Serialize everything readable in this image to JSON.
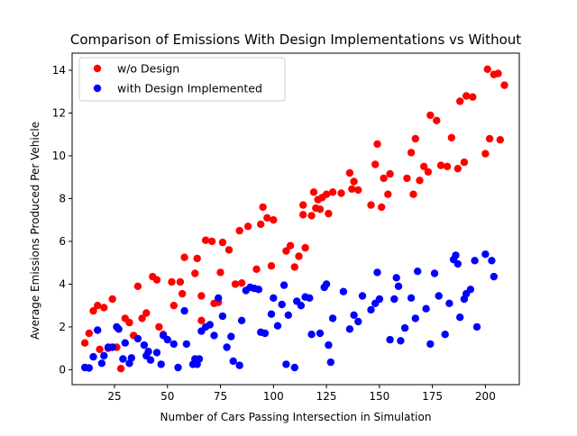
{
  "chart_data": {
    "type": "scatter",
    "title": "Comparison of Emissions With Design Implementations vs Without",
    "xlabel": "Number of Cars Passing Intersection in Simulation",
    "ylabel": "Average Emissions Produced Per Vehicle",
    "xlim": [
      5,
      216
    ],
    "ylim": [
      -0.7,
      14.8
    ],
    "xticks": [
      25,
      50,
      75,
      100,
      125,
      150,
      175,
      200
    ],
    "yticks": [
      0,
      2,
      4,
      6,
      8,
      10,
      12,
      14
    ],
    "grid": false,
    "legend_position": "upper left",
    "series": [
      {
        "name": "w/o Design",
        "color": "#ff0000",
        "points": [
          [
            11,
            1.25
          ],
          [
            13,
            1.7
          ],
          [
            15,
            2.75
          ],
          [
            17,
            3.0
          ],
          [
            18,
            0.95
          ],
          [
            20,
            2.9
          ],
          [
            22,
            1.0
          ],
          [
            24,
            3.3
          ],
          [
            26,
            1.05
          ],
          [
            28,
            0.05
          ],
          [
            30,
            2.4
          ],
          [
            32,
            2.2
          ],
          [
            34,
            1.6
          ],
          [
            36,
            3.9
          ],
          [
            38,
            2.4
          ],
          [
            40,
            2.65
          ],
          [
            43,
            4.35
          ],
          [
            45,
            4.2
          ],
          [
            46,
            2.0
          ],
          [
            48,
            1.65
          ],
          [
            52,
            4.1
          ],
          [
            53,
            3.0
          ],
          [
            56,
            4.1
          ],
          [
            57,
            3.55
          ],
          [
            58,
            5.25
          ],
          [
            63,
            4.5
          ],
          [
            64,
            5.2
          ],
          [
            66,
            3.45
          ],
          [
            66,
            2.3
          ],
          [
            68,
            6.05
          ],
          [
            71,
            6.0
          ],
          [
            72,
            3.1
          ],
          [
            74,
            3.15
          ],
          [
            75,
            4.55
          ],
          [
            76,
            5.95
          ],
          [
            79,
            5.6
          ],
          [
            82,
            4.0
          ],
          [
            84,
            6.5
          ],
          [
            85,
            4.05
          ],
          [
            88,
            6.7
          ],
          [
            92,
            4.7
          ],
          [
            94,
            6.8
          ],
          [
            95,
            7.6
          ],
          [
            97,
            7.1
          ],
          [
            99,
            4.85
          ],
          [
            100,
            7.0
          ],
          [
            106,
            5.55
          ],
          [
            108,
            5.8
          ],
          [
            110,
            4.8
          ],
          [
            112,
            5.3
          ],
          [
            114,
            7.7
          ],
          [
            114,
            7.25
          ],
          [
            115,
            5.7
          ],
          [
            118,
            7.2
          ],
          [
            119,
            8.3
          ],
          [
            120,
            7.55
          ],
          [
            121,
            7.95
          ],
          [
            122,
            7.5
          ],
          [
            123,
            8.05
          ],
          [
            125,
            8.2
          ],
          [
            126,
            7.3
          ],
          [
            128,
            8.3
          ],
          [
            132,
            8.25
          ],
          [
            136,
            9.2
          ],
          [
            137,
            8.45
          ],
          [
            138,
            8.8
          ],
          [
            140,
            8.4
          ],
          [
            146,
            7.7
          ],
          [
            148,
            9.6
          ],
          [
            149,
            10.55
          ],
          [
            151,
            7.6
          ],
          [
            152,
            8.95
          ],
          [
            154,
            8.2
          ],
          [
            155,
            9.15
          ],
          [
            163,
            8.95
          ],
          [
            165,
            10.15
          ],
          [
            166,
            8.2
          ],
          [
            167,
            10.8
          ],
          [
            169,
            8.85
          ],
          [
            171,
            9.5
          ],
          [
            173,
            9.25
          ],
          [
            174,
            11.9
          ],
          [
            177,
            11.65
          ],
          [
            179,
            9.55
          ],
          [
            182,
            9.5
          ],
          [
            184,
            10.85
          ],
          [
            187,
            9.4
          ],
          [
            188,
            12.55
          ],
          [
            190,
            9.7
          ],
          [
            191,
            12.8
          ],
          [
            194,
            12.75
          ],
          [
            200,
            10.1
          ],
          [
            201,
            14.05
          ],
          [
            202,
            10.8
          ],
          [
            204,
            13.8
          ],
          [
            206,
            13.85
          ],
          [
            207,
            10.75
          ],
          [
            209,
            13.3
          ]
        ]
      },
      {
        "name": "with Design Implemented",
        "color": "#0000ff",
        "points": [
          [
            11,
            0.1
          ],
          [
            13,
            0.08
          ],
          [
            15,
            0.6
          ],
          [
            17,
            1.85
          ],
          [
            19,
            0.3
          ],
          [
            20,
            0.65
          ],
          [
            22,
            1.05
          ],
          [
            24,
            1.05
          ],
          [
            26,
            2.0
          ],
          [
            27,
            1.9
          ],
          [
            29,
            0.5
          ],
          [
            30,
            1.25
          ],
          [
            32,
            0.3
          ],
          [
            33,
            0.55
          ],
          [
            36,
            1.45
          ],
          [
            39,
            1.15
          ],
          [
            40,
            0.65
          ],
          [
            41,
            0.85
          ],
          [
            42,
            0.45
          ],
          [
            45,
            0.8
          ],
          [
            47,
            0.25
          ],
          [
            48,
            1.6
          ],
          [
            50,
            1.4
          ],
          [
            53,
            1.2
          ],
          [
            55,
            0.1
          ],
          [
            58,
            2.75
          ],
          [
            59,
            1.2
          ],
          [
            62,
            0.25
          ],
          [
            63,
            0.5
          ],
          [
            64,
            0.25
          ],
          [
            65,
            0.5
          ],
          [
            66,
            1.8
          ],
          [
            68,
            2.0
          ],
          [
            70,
            2.1
          ],
          [
            72,
            1.6
          ],
          [
            74,
            3.35
          ],
          [
            76,
            2.5
          ],
          [
            78,
            1.05
          ],
          [
            80,
            1.55
          ],
          [
            81,
            0.4
          ],
          [
            84,
            0.2
          ],
          [
            85,
            2.3
          ],
          [
            87,
            3.7
          ],
          [
            89,
            3.85
          ],
          [
            91,
            3.8
          ],
          [
            93,
            3.75
          ],
          [
            94,
            1.75
          ],
          [
            96,
            1.7
          ],
          [
            99,
            2.6
          ],
          [
            100,
            3.35
          ],
          [
            102,
            2.05
          ],
          [
            104,
            3.05
          ],
          [
            105,
            3.95
          ],
          [
            106,
            0.25
          ],
          [
            107,
            2.55
          ],
          [
            110,
            0.1
          ],
          [
            111,
            3.2
          ],
          [
            113,
            3.0
          ],
          [
            115,
            3.4
          ],
          [
            117,
            3.35
          ],
          [
            118,
            1.65
          ],
          [
            122,
            1.7
          ],
          [
            124,
            3.85
          ],
          [
            125,
            4.0
          ],
          [
            126,
            1.15
          ],
          [
            127,
            0.35
          ],
          [
            128,
            2.4
          ],
          [
            133,
            3.65
          ],
          [
            136,
            1.9
          ],
          [
            138,
            2.55
          ],
          [
            140,
            2.25
          ],
          [
            142,
            3.45
          ],
          [
            146,
            2.8
          ],
          [
            148,
            3.1
          ],
          [
            149,
            4.55
          ],
          [
            150,
            3.3
          ],
          [
            155,
            1.4
          ],
          [
            157,
            3.3
          ],
          [
            158,
            4.3
          ],
          [
            159,
            3.9
          ],
          [
            160,
            1.35
          ],
          [
            162,
            1.95
          ],
          [
            165,
            3.35
          ],
          [
            167,
            2.4
          ],
          [
            168,
            4.6
          ],
          [
            172,
            2.85
          ],
          [
            174,
            1.2
          ],
          [
            176,
            4.5
          ],
          [
            178,
            3.45
          ],
          [
            181,
            1.65
          ],
          [
            183,
            3.1
          ],
          [
            185,
            5.15
          ],
          [
            186,
            5.35
          ],
          [
            187,
            4.95
          ],
          [
            188,
            2.45
          ],
          [
            190,
            3.3
          ],
          [
            191,
            3.55
          ],
          [
            193,
            3.75
          ],
          [
            195,
            5.1
          ],
          [
            196,
            2.0
          ],
          [
            200,
            5.4
          ],
          [
            203,
            5.1
          ],
          [
            204,
            4.35
          ]
        ]
      }
    ]
  }
}
